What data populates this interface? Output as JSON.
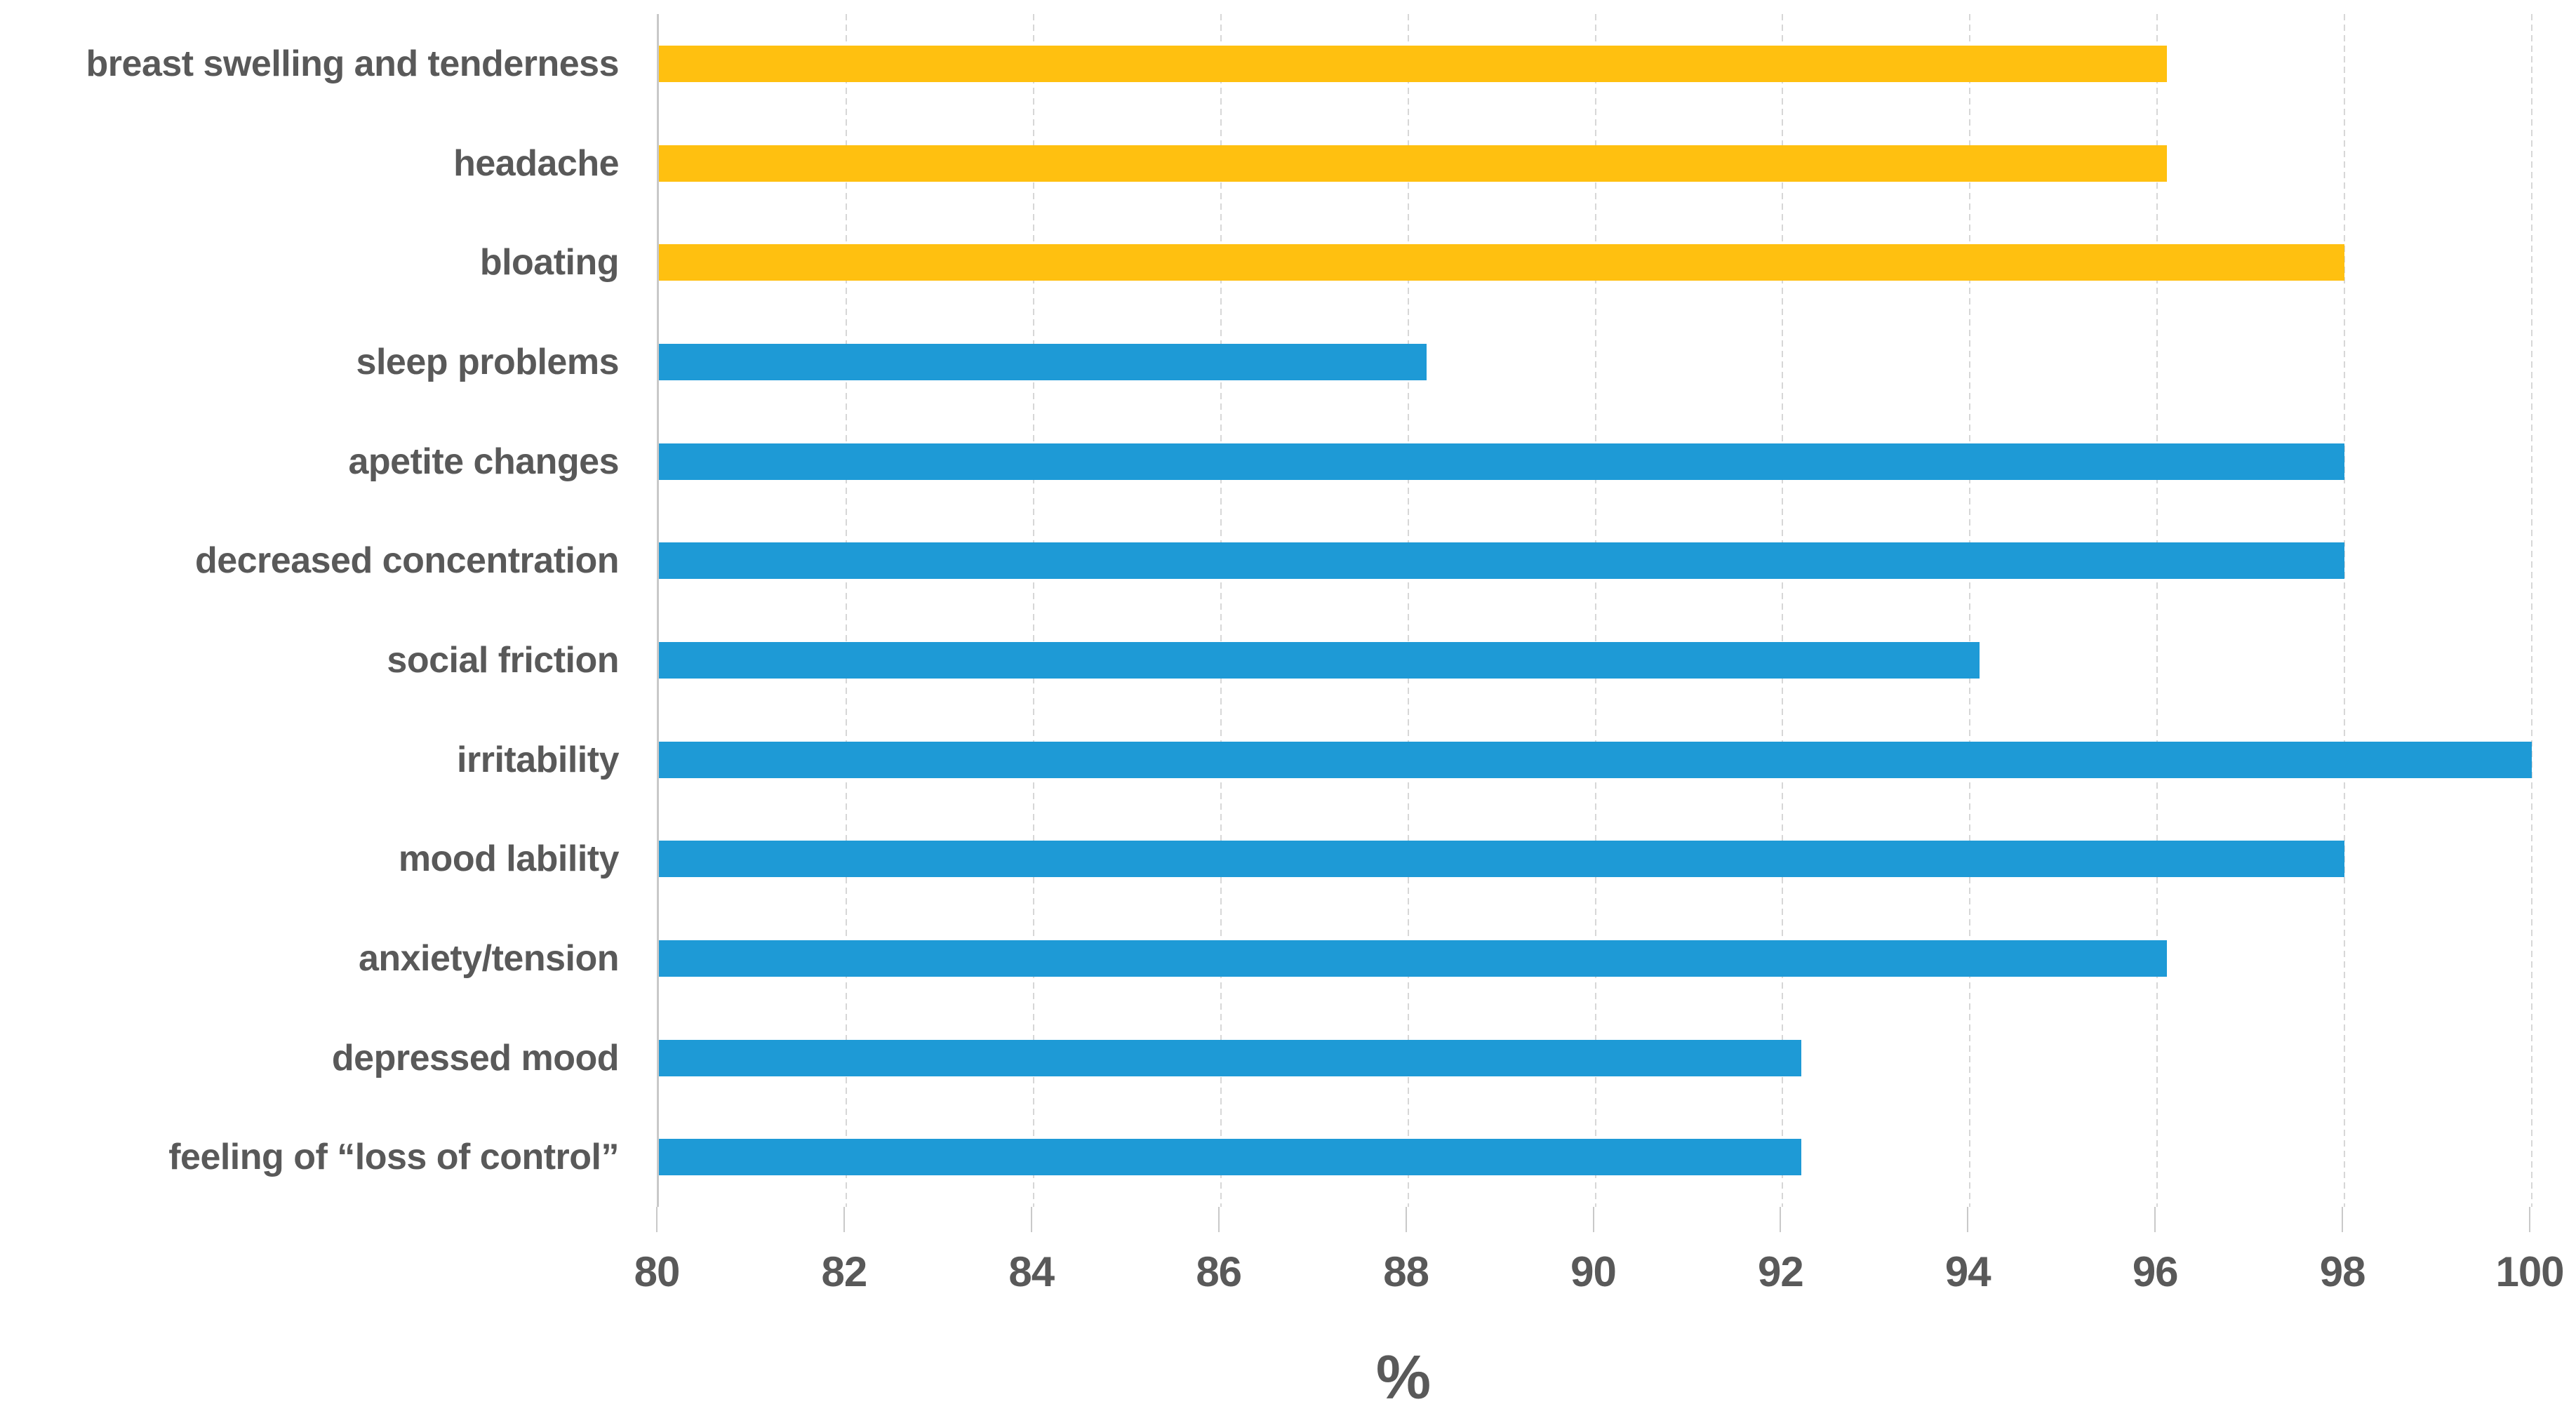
{
  "page": {
    "background": "#FFFFFF"
  },
  "chart_data": {
    "type": "bar",
    "orientation": "horizontal",
    "title": "",
    "xlabel": "%",
    "ylabel": "",
    "xlim": [
      80,
      100
    ],
    "xticks": [
      80,
      82,
      84,
      86,
      88,
      90,
      92,
      94,
      96,
      98,
      100
    ],
    "grid": true,
    "legend": false,
    "categories": [
      "breast swelling and tenderness",
      "headache",
      "bloating",
      "sleep problems",
      "apetite changes",
      "decreased concentration",
      "social friction",
      "irritability",
      "mood lability",
      "anxiety/tension",
      "depressed mood",
      "feeling of “loss of control”"
    ],
    "values": [
      96.1,
      96.1,
      98.0,
      88.2,
      98.0,
      98.0,
      94.1,
      100.0,
      98.0,
      96.1,
      92.2,
      92.2
    ],
    "bar_colors": [
      "#FFC010",
      "#FFC010",
      "#FFC010",
      "#1E9AD6",
      "#1E9AD6",
      "#1E9AD6",
      "#1E9AD6",
      "#1E9AD6",
      "#1E9AD6",
      "#1E9AD6",
      "#1E9AD6",
      "#1E9AD6"
    ],
    "series_colors": {
      "gold": "#FFC010",
      "blue": "#1E9AD6"
    },
    "text_color": "#595959",
    "gridline_color": "#D7D7D7",
    "axis_line_color": "#C9C9C9"
  }
}
